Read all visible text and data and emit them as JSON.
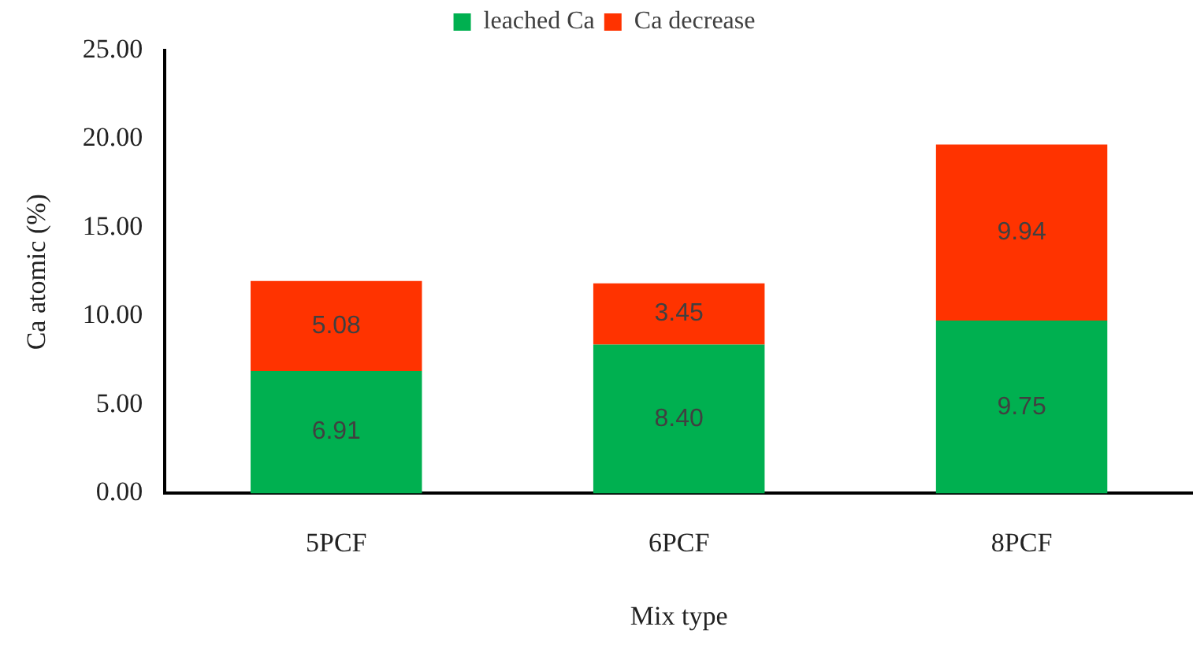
{
  "chart_data": {
    "type": "bar",
    "stacked": true,
    "xlabel": "Mix type",
    "ylabel": "Ca atomic (%)",
    "categories": [
      "5PCF",
      "6PCF",
      "8PCF"
    ],
    "series": [
      {
        "name": "leached Ca",
        "color": "#00b050",
        "values": [
          6.91,
          8.4,
          9.75
        ],
        "value_labels": [
          "6.91",
          "8.40",
          "9.75"
        ]
      },
      {
        "name": "Ca decrease",
        "color": "#ff3300",
        "values": [
          5.08,
          3.45,
          9.94
        ],
        "value_labels": [
          "5.08",
          "3.45",
          "9.94"
        ]
      }
    ],
    "ylim": [
      0,
      25
    ],
    "yticks": [
      {
        "value": 0,
        "label": "0.00"
      },
      {
        "value": 5,
        "label": "5.00"
      },
      {
        "value": 10,
        "label": "10.00"
      },
      {
        "value": 15,
        "label": "15.00"
      },
      {
        "value": 20,
        "label": "20.00"
      },
      {
        "value": 25,
        "label": "25.00"
      }
    ],
    "legend": "top"
  }
}
